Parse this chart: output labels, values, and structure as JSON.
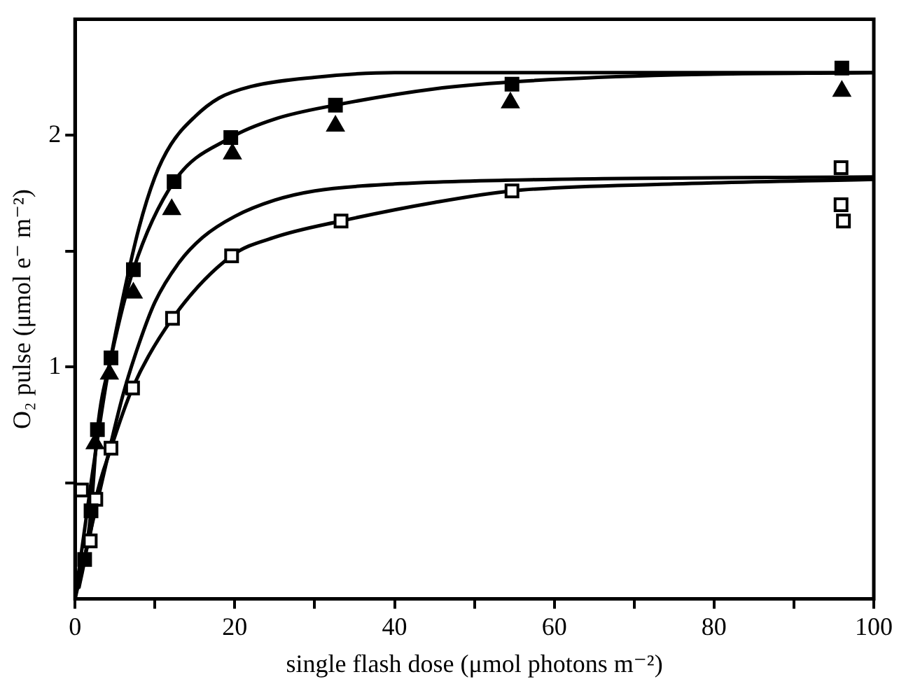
{
  "chart_data": {
    "type": "scatter",
    "xlabel": "single flash dose (μmol photons m⁻²)",
    "ylabel": "O₂ pulse (μmol e⁻ m⁻²)",
    "xlim": [
      0,
      100
    ],
    "ylim": [
      0,
      2.5
    ],
    "xticks": [
      0,
      {
        "value": 10,
        "label": null
      },
      20,
      {
        "value": 30,
        "label": null
      },
      40,
      {
        "value": 50,
        "label": null
      },
      60,
      {
        "value": 70,
        "label": null
      },
      80,
      {
        "value": 90,
        "label": null
      },
      100
    ],
    "yticks": [
      {
        "value": 0.5,
        "label": null
      },
      1,
      {
        "value": 1.5,
        "label": null
      },
      2
    ],
    "grid": false,
    "legend": false,
    "series": [
      {
        "type": "line",
        "color": "#000000",
        "marker": "none",
        "line_style": "solid",
        "x": [
          0,
          2,
          4,
          6,
          8,
          10,
          12,
          15,
          18,
          22,
          30,
          40,
          100
        ],
        "values": [
          0,
          0.5,
          0.95,
          1.3,
          1.6,
          1.82,
          1.96,
          2.08,
          2.16,
          2.21,
          2.25,
          2.27,
          2.27
        ]
      },
      {
        "type": "line",
        "color": "#000000",
        "marker": "none",
        "line_style": "solid",
        "x": [
          0.5,
          1.2,
          2,
          2.8,
          4.5,
          7.3,
          12.4,
          19.5,
          25,
          32.6,
          45,
          54.7,
          75,
          100
        ],
        "values": [
          0.05,
          0.17,
          0.38,
          0.73,
          1.04,
          1.42,
          1.8,
          1.99,
          2.07,
          2.13,
          2.2,
          2.23,
          2.26,
          2.27
        ]
      },
      {
        "type": "line",
        "color": "#000000",
        "marker": "none",
        "line_style": "solid",
        "x": [
          0,
          2,
          4,
          6,
          8,
          10,
          13,
          16,
          20,
          25,
          30,
          40,
          60,
          100
        ],
        "values": [
          0,
          0.3,
          0.6,
          0.88,
          1.1,
          1.28,
          1.45,
          1.56,
          1.65,
          1.72,
          1.76,
          1.79,
          1.81,
          1.82
        ]
      },
      {
        "type": "line",
        "color": "#000000",
        "marker": "none",
        "line_style": "solid",
        "x": [
          1,
          2,
          2.6,
          4.5,
          7.2,
          12.2,
          19.6,
          25,
          33.3,
          45,
          54.7,
          75,
          100
        ],
        "values": [
          0.15,
          0.3,
          0.43,
          0.65,
          0.91,
          1.21,
          1.48,
          1.56,
          1.63,
          1.71,
          1.76,
          1.79,
          1.81
        ]
      },
      {
        "color": "#000000",
        "marker": "square",
        "x": [
          1.2,
          2,
          2.8,
          4.5,
          7.3,
          12.4,
          19.5,
          32.6,
          54.7,
          96
        ],
        "values": [
          0.17,
          0.38,
          0.73,
          1.04,
          1.42,
          1.8,
          1.99,
          2.13,
          2.22,
          2.29
        ]
      },
      {
        "color": "#000000",
        "marker": "triangle",
        "x": [
          2.5,
          4.3,
          7.3,
          12.1,
          19.7,
          32.6,
          54.5,
          96
        ],
        "values": [
          0.67,
          0.97,
          1.32,
          1.68,
          1.92,
          2.04,
          2.14,
          2.19
        ]
      },
      {
        "color": "#ffffff",
        "marker": "square",
        "x": [
          0.8,
          1.9,
          2.6,
          4.5,
          7.2,
          12.2,
          19.6,
          33.3,
          54.7,
          95.9,
          95.9,
          96.2
        ],
        "values": [
          0.47,
          0.25,
          0.43,
          0.65,
          0.91,
          1.21,
          1.48,
          1.63,
          1.76,
          1.86,
          1.7,
          1.63
        ]
      }
    ]
  }
}
